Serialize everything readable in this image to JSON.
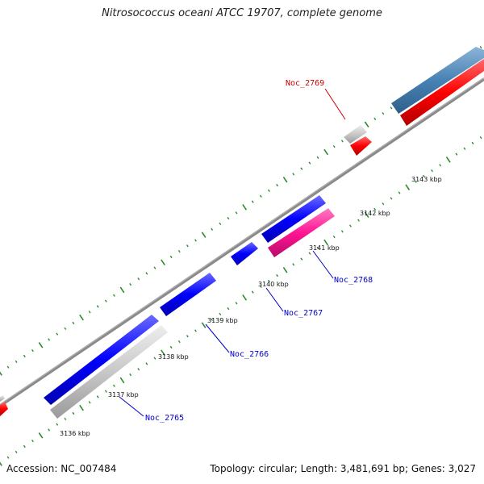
{
  "title": "Nitrosococcus oceani ATCC 19707, complete genome",
  "footer": {
    "accession": "Accession: NC_007484",
    "summary": "Topology: circular; Length: 3,481,691 bp; Genes: 3,027"
  },
  "colors": {
    "backbone": "#888888",
    "tick": "#2e8b2e",
    "forward_cds": "#4682b4",
    "forward_red": "#ff0000",
    "reverse_cds": "#0000ff",
    "grey_gene": "#c8c8c8",
    "pink_gene": "#ff1493",
    "label_blue": "#0000cc",
    "label_red": "#cc0000"
  },
  "kbp_labels": [
    {
      "text": "3136 kbp"
    },
    {
      "text": "3137 kbp"
    },
    {
      "text": "3138 kbp"
    },
    {
      "text": "3139 kbp"
    },
    {
      "text": "3140 kbp"
    },
    {
      "text": "3141 kbp"
    },
    {
      "text": "3142 kbp"
    },
    {
      "text": "3143 kbp"
    }
  ],
  "gene_labels": [
    {
      "text": "Noc_2765",
      "color": "label_blue"
    },
    {
      "text": "Noc_2766",
      "color": "label_blue"
    },
    {
      "text": "Noc_2767",
      "color": "label_blue"
    },
    {
      "text": "Noc_2768",
      "color": "label_blue"
    },
    {
      "text": "Noc_2769",
      "color": "label_red"
    }
  ]
}
